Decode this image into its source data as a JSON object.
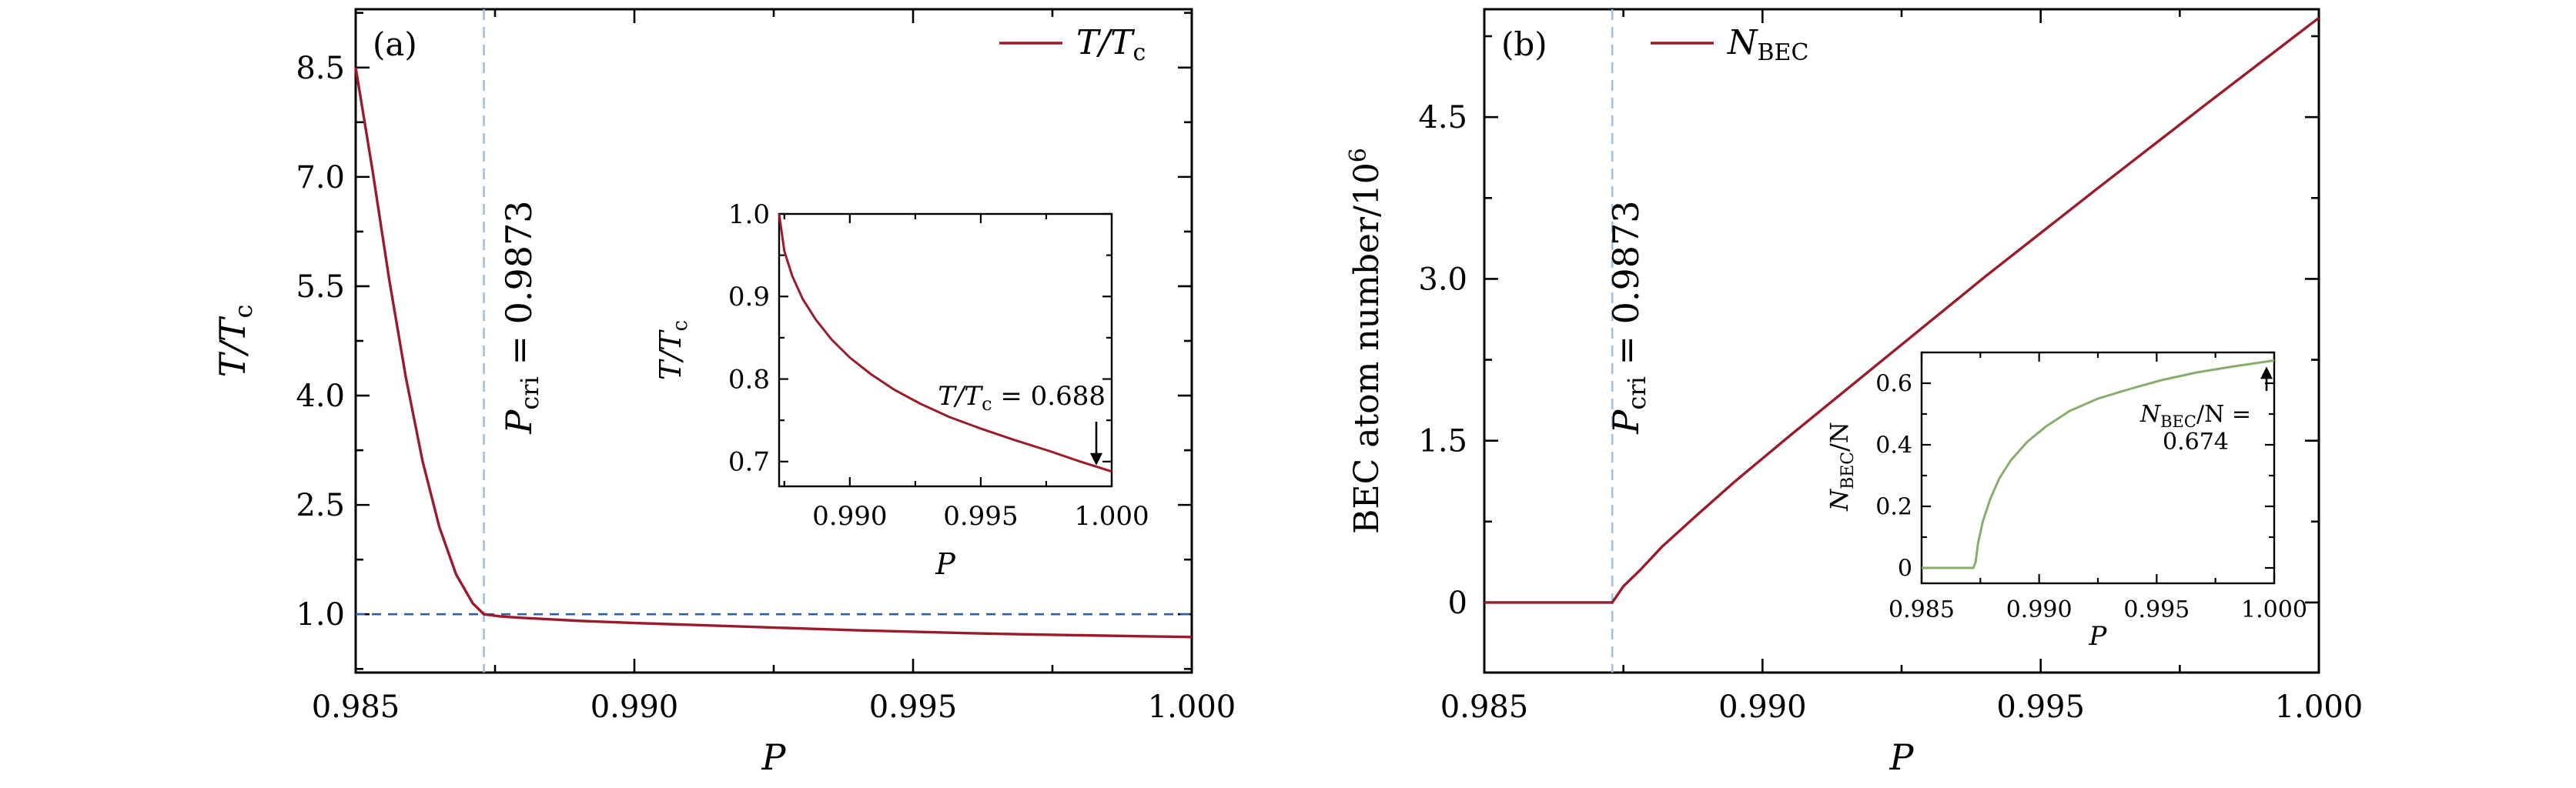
{
  "colors": {
    "curve_dark_red": "#9b1b2a",
    "curve_green": "#86ad6a",
    "vline_light_blue": "#9cc2e2",
    "hline_blue": "#2f5fa8",
    "axes": "#000000"
  },
  "chart_data": [
    {
      "id": "a",
      "type": "line",
      "panel_label": "(a)",
      "xlabel": "P",
      "ylabel_main": "T/T",
      "ylabel_sub": "c",
      "xlim": [
        0.985,
        1.0
      ],
      "ylim": [
        0.2,
        9.3
      ],
      "xticks": [
        0.985,
        0.99,
        0.995,
        1.0
      ],
      "xtick_labels": [
        "0.985",
        "0.990",
        "0.995",
        "1.000"
      ],
      "yticks": [
        1.0,
        2.5,
        4.0,
        5.5,
        7.0,
        8.5
      ],
      "ytick_labels": [
        "1.0",
        "2.5",
        "4.0",
        "5.5",
        "7.0",
        "8.5"
      ],
      "legend": {
        "main": "T/T",
        "sub": "c",
        "placement": "top-right"
      },
      "vline": {
        "x": 0.9873,
        "style": "dashed"
      },
      "vline_label": {
        "base": "P",
        "sub": "cri",
        "eq": " = 0.9873"
      },
      "hline": {
        "y": 1.0,
        "style": "dashed"
      },
      "series": [
        {
          "x": [
            0.985,
            0.9853,
            0.9856,
            0.9859,
            0.9862,
            0.9865,
            0.9868,
            0.9871,
            0.9873,
            0.9876,
            0.988,
            0.9885,
            0.989,
            0.99,
            0.991,
            0.992,
            0.993,
            0.994,
            0.995,
            0.996,
            0.997,
            0.998,
            0.999,
            1.0
          ],
          "y": [
            8.5,
            7.1,
            5.6,
            4.25,
            3.1,
            2.2,
            1.55,
            1.15,
            1.0,
            0.97,
            0.95,
            0.93,
            0.91,
            0.88,
            0.855,
            0.83,
            0.805,
            0.78,
            0.76,
            0.74,
            0.725,
            0.712,
            0.7,
            0.688
          ]
        }
      ],
      "inset": {
        "xlabel": "P",
        "ylabel_main": "T/T",
        "ylabel_sub": "c",
        "xlim": [
          0.9873,
          1.0
        ],
        "ylim": [
          0.67,
          1.0
        ],
        "xticks": [
          0.99,
          0.995,
          1.0
        ],
        "xtick_labels": [
          "0.990",
          "0.995",
          "1.000"
        ],
        "yticks": [
          0.7,
          0.8,
          0.9,
          1.0
        ],
        "ytick_labels": [
          "0.7",
          "0.8",
          "0.9",
          "1.0"
        ],
        "annotation": {
          "main": "T/T",
          "sub": "c",
          "eq": " = 0.688",
          "arrow_x": 0.9995,
          "arrow_y": 0.688
        },
        "series": [
          {
            "x": [
              0.9873,
              0.9875,
              0.9878,
              0.9882,
              0.9887,
              0.9893,
              0.99,
              0.9908,
              0.9917,
              0.9927,
              0.9938,
              0.995,
              0.9963,
              0.9976,
              0.9988,
              1.0
            ],
            "y": [
              1.0,
              0.955,
              0.925,
              0.897,
              0.872,
              0.848,
              0.826,
              0.806,
              0.787,
              0.77,
              0.754,
              0.74,
              0.726,
              0.713,
              0.7,
              0.688
            ]
          }
        ]
      }
    },
    {
      "id": "b",
      "type": "line",
      "panel_label": "(b)",
      "xlabel": "P",
      "ylabel": "BEC atom number/10",
      "ylabel_sup": "6",
      "xlim": [
        0.985,
        1.0
      ],
      "ylim": [
        -0.65,
        5.5
      ],
      "xticks": [
        0.985,
        0.99,
        0.995,
        1.0
      ],
      "xtick_labels": [
        "0.985",
        "0.990",
        "0.995",
        "1.000"
      ],
      "yticks": [
        0,
        1.5,
        3.0,
        4.5
      ],
      "ytick_labels": [
        "0",
        "1.5",
        "3.0",
        "4.5"
      ],
      "legend": {
        "main": "N",
        "sub": "BEC",
        "placement": "top-left"
      },
      "vline": {
        "x": 0.9873,
        "style": "dashed"
      },
      "vline_label": {
        "base": "P",
        "sub": "cri",
        "eq": " = 0.9873"
      },
      "series": [
        {
          "x": [
            0.985,
            0.9873,
            0.9875,
            0.9878,
            0.9882,
            0.9888,
            0.9895,
            0.9905,
            0.992,
            0.994,
            0.996,
            0.998,
            1.0
          ],
          "y": [
            0,
            0,
            0.15,
            0.3,
            0.52,
            0.8,
            1.12,
            1.55,
            2.18,
            3.02,
            3.83,
            4.63,
            5.42
          ]
        }
      ],
      "inset": {
        "xlabel": "P",
        "ylabel_main": "N",
        "ylabel_sub": "BEC",
        "ylabel_tail": "/N",
        "xlim": [
          0.985,
          1.0
        ],
        "ylim": [
          -0.05,
          0.7
        ],
        "xticks": [
          0.985,
          0.99,
          0.995,
          1.0
        ],
        "xtick_labels": [
          "0.985",
          "0.990",
          "0.995",
          "1.000"
        ],
        "yticks": [
          0,
          0.2,
          0.4,
          0.6
        ],
        "ytick_labels": [
          "0",
          "0.2",
          "0.4",
          "0.6"
        ],
        "annotation": {
          "main": "N",
          "sub": "BEC",
          "line1_tail": "/N =",
          "line2": "0.674",
          "arrow_x": 0.9997,
          "arrow_y": 0.674
        },
        "series": [
          {
            "x": [
              0.985,
              0.9872,
              0.9873,
              0.9874,
              0.9876,
              0.9879,
              0.9883,
              0.9888,
              0.9895,
              0.9903,
              0.9913,
              0.9925,
              0.9938,
              0.9952,
              0.9967,
              0.9983,
              1.0
            ],
            "y": [
              0,
              0,
              0.02,
              0.08,
              0.15,
              0.22,
              0.29,
              0.35,
              0.41,
              0.46,
              0.51,
              0.55,
              0.58,
              0.61,
              0.635,
              0.655,
              0.674
            ]
          }
        ]
      }
    }
  ]
}
